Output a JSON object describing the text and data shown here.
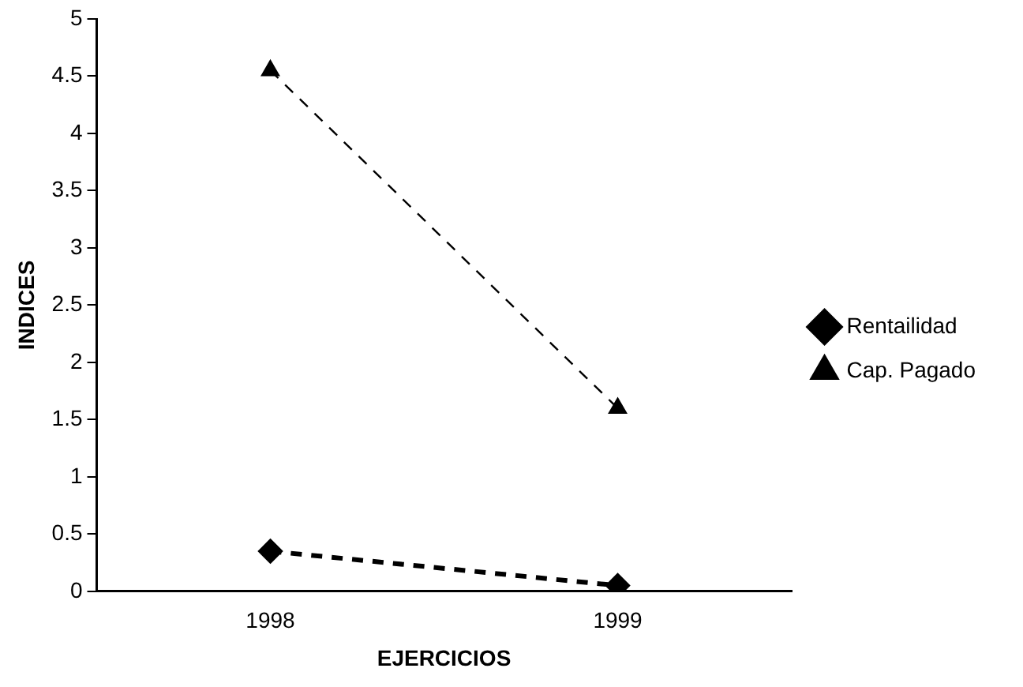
{
  "chart_data": {
    "type": "line",
    "xlabel": "EJERCICIOS",
    "ylabel": "INDICES",
    "categories": [
      "1998",
      "1999"
    ],
    "series": [
      {
        "name": "Rentailidad",
        "color": "#000000",
        "values": [
          0.35,
          0.05
        ],
        "marker": "diamond",
        "line_style": "dashed"
      },
      {
        "name": "Cap. Pagado",
        "color": "#000000",
        "values": [
          4.55,
          1.6
        ],
        "marker": "triangle",
        "line_style": "dashed"
      }
    ],
    "ylim": [
      0,
      5
    ],
    "yticks": [
      0,
      0.5,
      1,
      1.5,
      2,
      2.5,
      3,
      3.5,
      4,
      4.5,
      5
    ],
    "grid": false,
    "legend": "right"
  }
}
